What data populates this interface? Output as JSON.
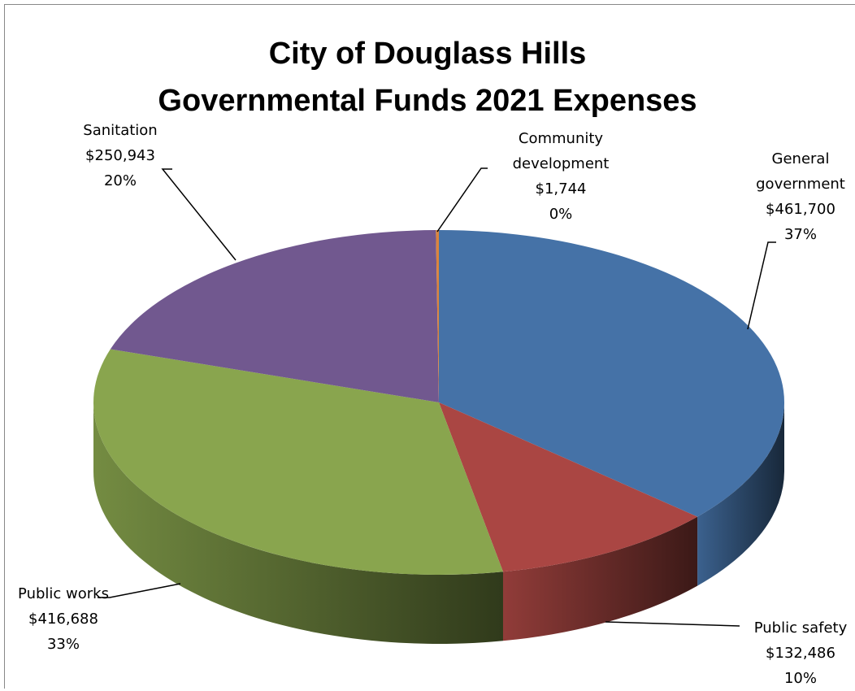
{
  "chart_data": {
    "type": "pie3d",
    "title": [
      "City of Douglass Hills",
      "Governmental Funds 2021 Expenses"
    ],
    "categories": [
      "General government",
      "Public safety",
      "Public works",
      "Sanitation",
      "Community development"
    ],
    "values": [
      461700,
      132486,
      416688,
      250943,
      1744
    ],
    "value_labels": [
      "$461,700",
      "$132,486",
      "$416,688",
      "$250,943",
      "$1,744"
    ],
    "percents": [
      37,
      10,
      33,
      20,
      0
    ],
    "percent_labels": [
      "37%",
      "10%",
      "33%",
      "20%",
      "0%"
    ],
    "colors": [
      "#4572a7",
      "#aa4643",
      "#89a54e",
      "#71588f",
      "#db843d"
    ]
  }
}
